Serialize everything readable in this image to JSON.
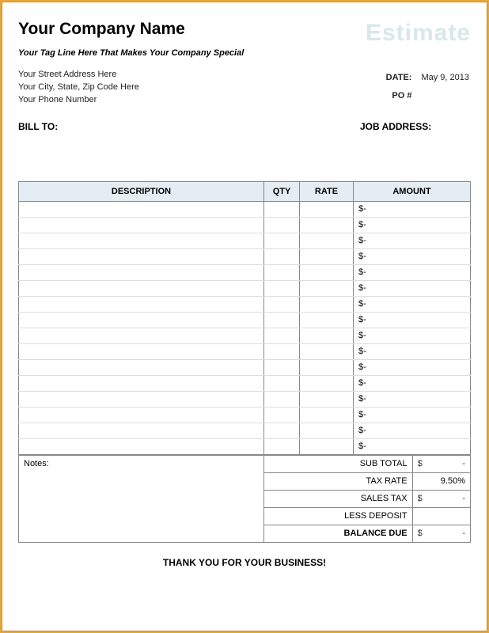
{
  "header": {
    "company": "Your Company Name",
    "watermark": "Estimate",
    "tagline": "Your Tag Line Here That Makes Your Company Special",
    "addr1": "Your Street Address Here",
    "addr2": "Your City, State, Zip Code Here",
    "addr3": "Your Phone Number",
    "date_lbl": "DATE:",
    "date_val": "May 9, 2013",
    "po_lbl": "PO #",
    "po_val": ""
  },
  "labels": {
    "bill_to": "BILL TO:",
    "job_addr": "JOB ADDRESS:",
    "desc": "DESCRIPTION",
    "qty": "QTY",
    "rate": "RATE",
    "amount": "AMOUNT",
    "notes": "Notes:",
    "subtotal": "SUB TOTAL",
    "taxrate": "TAX RATE",
    "salestax": "SALES TAX",
    "lessdep": "LESS DEPOSIT",
    "balance": "BALANCE DUE",
    "thanks": "THANK YOU FOR YOUR BUSINESS!"
  },
  "items": [
    {
      "desc": "",
      "qty": "",
      "rate": "",
      "sym": "$",
      "amt": "-"
    },
    {
      "desc": "",
      "qty": "",
      "rate": "",
      "sym": "$",
      "amt": "-"
    },
    {
      "desc": "",
      "qty": "",
      "rate": "",
      "sym": "$",
      "amt": "-"
    },
    {
      "desc": "",
      "qty": "",
      "rate": "",
      "sym": "$",
      "amt": "-"
    },
    {
      "desc": "",
      "qty": "",
      "rate": "",
      "sym": "$",
      "amt": "-"
    },
    {
      "desc": "",
      "qty": "",
      "rate": "",
      "sym": "$",
      "amt": "-"
    },
    {
      "desc": "",
      "qty": "",
      "rate": "",
      "sym": "$",
      "amt": "-"
    },
    {
      "desc": "",
      "qty": "",
      "rate": "",
      "sym": "$",
      "amt": "-"
    },
    {
      "desc": "",
      "qty": "",
      "rate": "",
      "sym": "$",
      "amt": "-"
    },
    {
      "desc": "",
      "qty": "",
      "rate": "",
      "sym": "$",
      "amt": "-"
    },
    {
      "desc": "",
      "qty": "",
      "rate": "",
      "sym": "$",
      "amt": "-"
    },
    {
      "desc": "",
      "qty": "",
      "rate": "",
      "sym": "$",
      "amt": "-"
    },
    {
      "desc": "",
      "qty": "",
      "rate": "",
      "sym": "$",
      "amt": "-"
    },
    {
      "desc": "",
      "qty": "",
      "rate": "",
      "sym": "$",
      "amt": "-"
    },
    {
      "desc": "",
      "qty": "",
      "rate": "",
      "sym": "$",
      "amt": "-"
    },
    {
      "desc": "",
      "qty": "",
      "rate": "",
      "sym": "$",
      "amt": "-"
    }
  ],
  "totals": {
    "subtotal": {
      "sym": "$",
      "val": "-"
    },
    "taxrate": "9.50%",
    "salestax": {
      "sym": "$",
      "val": "-"
    },
    "lessdep": "",
    "balance": {
      "sym": "$",
      "val": "-"
    }
  },
  "style": {
    "border_color": "#e8a838",
    "header_bg": "#e4edf3",
    "grid": "#888",
    "row_line": "#ddd"
  }
}
